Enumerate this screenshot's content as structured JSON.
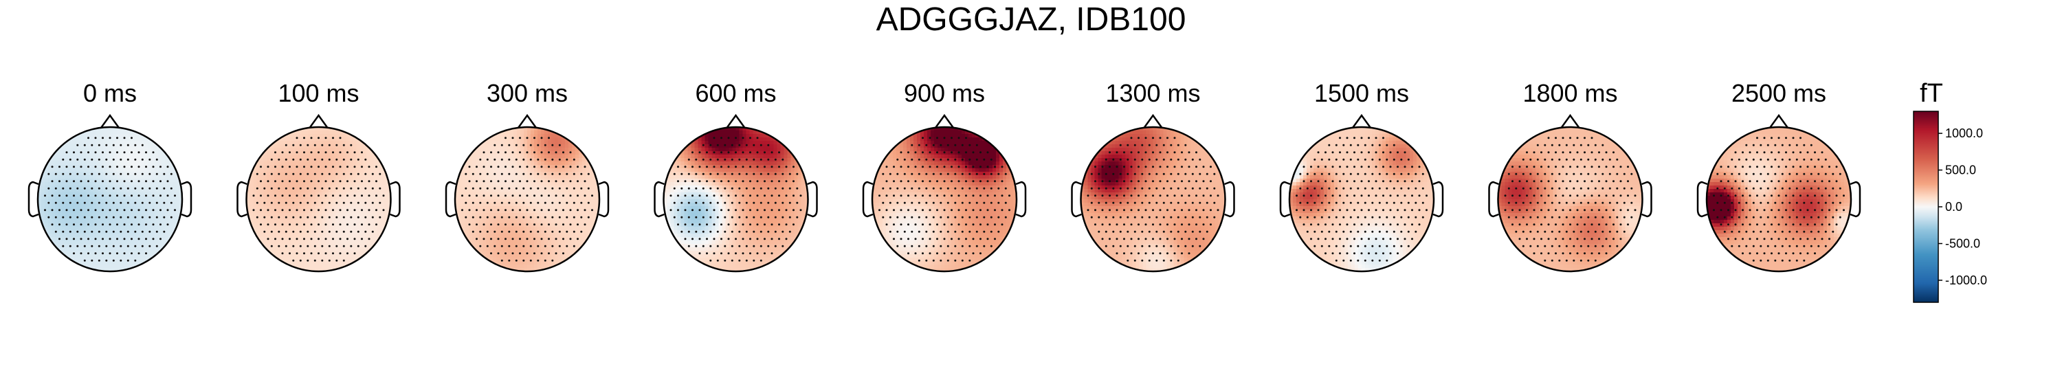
{
  "chart_data": {
    "type": "heatmap",
    "title": "ADGGGJAZ, IDB100",
    "unit": "fT",
    "colormap": "RdBu_r",
    "vlim": [
      -1300,
      1300
    ],
    "colorbar_ticks": [
      {
        "value": 1000,
        "label": "1000.0"
      },
      {
        "value": 500,
        "label": "500.0"
      },
      {
        "value": 0,
        "label": "0.0"
      },
      {
        "value": -500,
        "label": "-500.0"
      },
      {
        "value": -1000,
        "label": "-1000.0"
      }
    ],
    "maps": [
      {
        "label": "0 ms",
        "base": -80,
        "blobs": [
          {
            "x": 0.3,
            "y": -0.45,
            "a": 90,
            "s": 0.3
          },
          {
            "x": -0.6,
            "y": 0.1,
            "a": -140,
            "s": 0.35
          },
          {
            "x": 0.2,
            "y": 0.1,
            "a": -90,
            "s": 0.4
          }
        ]
      },
      {
        "label": "100 ms",
        "base": 110,
        "blobs": [
          {
            "x": -0.4,
            "y": -0.2,
            "a": 120,
            "s": 0.4
          },
          {
            "x": 0.4,
            "y": 0.3,
            "a": -60,
            "s": 0.35
          },
          {
            "x": 0.2,
            "y": -0.6,
            "a": 80,
            "s": 0.3
          }
        ]
      },
      {
        "label": "300 ms",
        "base": 130,
        "blobs": [
          {
            "x": 0.4,
            "y": -0.8,
            "a": 420,
            "s": 0.25
          },
          {
            "x": -0.3,
            "y": -0.3,
            "a": -60,
            "s": 0.3
          },
          {
            "x": 0.2,
            "y": 0.1,
            "a": -60,
            "s": 0.25
          },
          {
            "x": -0.2,
            "y": 0.6,
            "a": 140,
            "s": 0.4
          }
        ]
      },
      {
        "label": "600 ms",
        "base": 160,
        "blobs": [
          {
            "x": -0.2,
            "y": -0.9,
            "a": 1400,
            "s": 0.3
          },
          {
            "x": 0.5,
            "y": -0.7,
            "a": 800,
            "s": 0.25
          },
          {
            "x": -0.55,
            "y": 0.2,
            "a": -450,
            "s": 0.3
          },
          {
            "x": 0.4,
            "y": 0.1,
            "a": 180,
            "s": 0.4
          }
        ]
      },
      {
        "label": "900 ms",
        "base": 260,
        "blobs": [
          {
            "x": 0.0,
            "y": -0.9,
            "a": 1200,
            "s": 0.3
          },
          {
            "x": 0.55,
            "y": -0.6,
            "a": 1300,
            "s": 0.22
          },
          {
            "x": -0.5,
            "y": 0.45,
            "a": -250,
            "s": 0.35
          },
          {
            "x": 0.6,
            "y": 0.2,
            "a": 150,
            "s": 0.3
          }
        ]
      },
      {
        "label": "1300 ms",
        "base": 240,
        "blobs": [
          {
            "x": -0.6,
            "y": -0.35,
            "a": 1100,
            "s": 0.25
          },
          {
            "x": -0.2,
            "y": -0.8,
            "a": 450,
            "s": 0.3
          },
          {
            "x": 0.5,
            "y": 0.6,
            "a": 150,
            "s": 0.3
          },
          {
            "x": 0.1,
            "y": 0.85,
            "a": -200,
            "s": 0.25
          }
        ]
      },
      {
        "label": "1500 ms",
        "base": 160,
        "blobs": [
          {
            "x": -0.75,
            "y": -0.1,
            "a": 750,
            "s": 0.2
          },
          {
            "x": -0.9,
            "y": -0.3,
            "a": -500,
            "s": 0.15
          },
          {
            "x": 0.2,
            "y": 0.75,
            "a": -250,
            "s": 0.3
          },
          {
            "x": 0.55,
            "y": -0.6,
            "a": 400,
            "s": 0.2
          }
        ]
      },
      {
        "label": "1800 ms",
        "base": 230,
        "blobs": [
          {
            "x": -0.75,
            "y": -0.1,
            "a": 700,
            "s": 0.25
          },
          {
            "x": 0.1,
            "y": -0.1,
            "a": -100,
            "s": 0.3
          },
          {
            "x": 0.3,
            "y": 0.4,
            "a": 350,
            "s": 0.25
          },
          {
            "x": 0.8,
            "y": 0.3,
            "a": -150,
            "s": 0.2
          }
        ]
      },
      {
        "label": "2500 ms",
        "base": 250,
        "blobs": [
          {
            "x": -0.85,
            "y": 0.1,
            "a": 1700,
            "s": 0.2
          },
          {
            "x": 0.4,
            "y": 0.1,
            "a": 650,
            "s": 0.25
          },
          {
            "x": -0.3,
            "y": -0.3,
            "a": -160,
            "s": 0.3
          },
          {
            "x": 0.85,
            "y": 0.3,
            "a": -250,
            "s": 0.15
          }
        ]
      }
    ]
  }
}
